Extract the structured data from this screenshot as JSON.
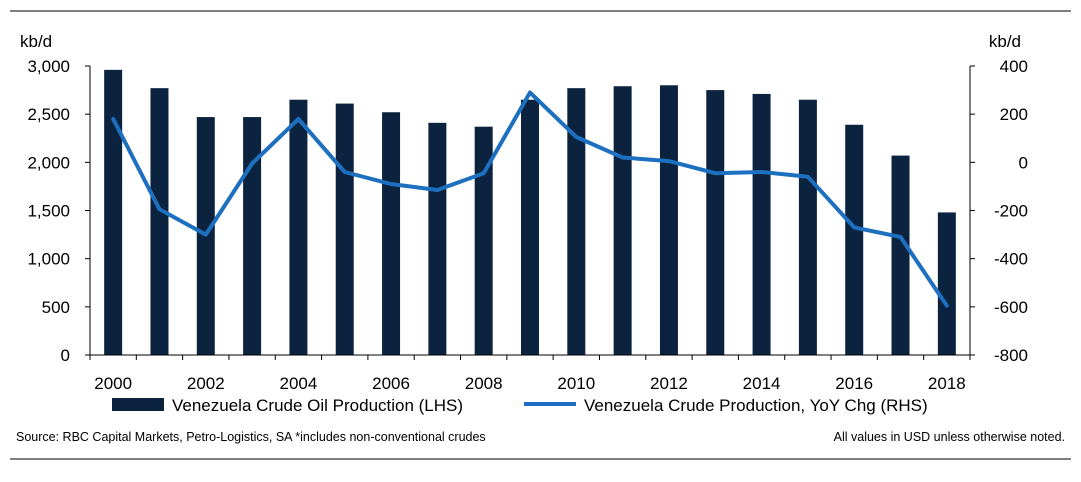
{
  "chart_data": {
    "type": "bar+line",
    "y_left": {
      "unit": "kb/d",
      "min": 0,
      "max": 3000,
      "step": 500,
      "ticks": [
        "0",
        "500",
        "1,000",
        "1,500",
        "2,000",
        "2,500",
        "3,000"
      ]
    },
    "y_right": {
      "unit": "kb/d",
      "min": -800,
      "max": 400,
      "step": 200,
      "ticks": [
        "-800",
        "-600",
        "-400",
        "-200",
        "0",
        "200",
        "400"
      ]
    },
    "x": [
      2000,
      2001,
      2002,
      2003,
      2004,
      2005,
      2006,
      2007,
      2008,
      2009,
      2010,
      2011,
      2012,
      2013,
      2014,
      2015,
      2016,
      2017,
      2018
    ],
    "x_tick_labels": [
      "2000",
      "2002",
      "2004",
      "2006",
      "2008",
      "2010",
      "2012",
      "2014",
      "2016",
      "2018"
    ],
    "series": [
      {
        "name": "Venezuela Crude Oil Production (LHS)",
        "type": "bar",
        "axis": "left",
        "color": "#0c2340",
        "values": [
          2960,
          2770,
          2470,
          2470,
          2650,
          2610,
          2520,
          2410,
          2370,
          2650,
          2770,
          2790,
          2800,
          2750,
          2710,
          2650,
          2390,
          2070,
          1480
        ]
      },
      {
        "name": "Venezuela Crude Production, YoY Chg (RHS)",
        "type": "line",
        "axis": "right",
        "color": "#1d6fbf",
        "values": [
          180,
          -195,
          -300,
          -5,
          180,
          -40,
          -90,
          -115,
          -45,
          290,
          105,
          20,
          5,
          -45,
          -40,
          -60,
          -270,
          -310,
          -595
        ]
      }
    ],
    "legend_position": "bottom",
    "grid": false
  },
  "footer": {
    "source": "Source: RBC Capital Markets, Petro-Logistics, SA   *includes non-conventional crudes",
    "note": "All values in USD unless otherwise noted."
  }
}
